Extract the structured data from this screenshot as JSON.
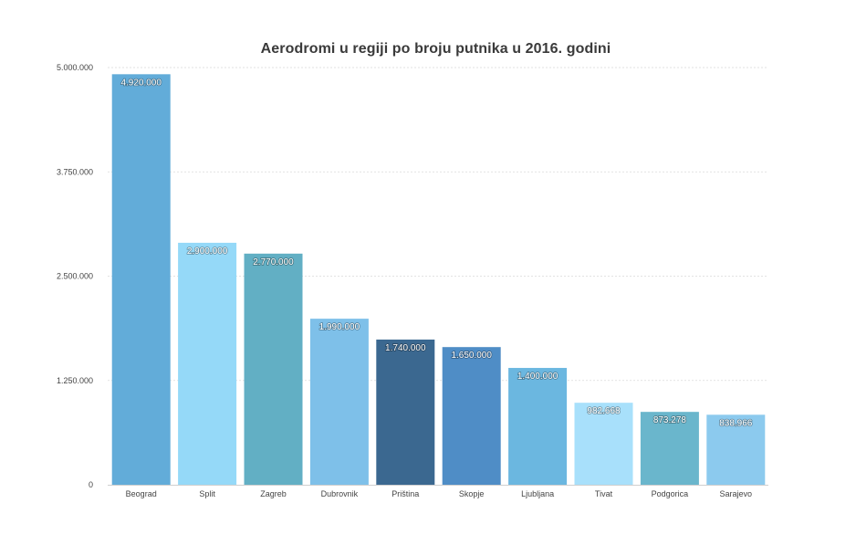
{
  "chart_data": {
    "type": "bar",
    "title": "Aerodromi u regiji po broju putnika u 2016. godini",
    "xlabel": "",
    "ylabel": "",
    "ylim": [
      0,
      5000000
    ],
    "y_ticks": [
      0,
      1250000,
      2500000,
      3750000,
      5000000
    ],
    "y_tick_labels": [
      "0",
      "1.250.000",
      "2.500.000",
      "3.750.000",
      "5.000.000"
    ],
    "grid": true,
    "legend": "none",
    "categories": [
      "Beograd",
      "Split",
      "Zagreb",
      "Dubrovnik",
      "Priština",
      "Skopje",
      "Ljubljana",
      "Tivat",
      "Podgorica",
      "Sarajevo"
    ],
    "values": [
      4920000,
      2900000,
      2770000,
      1990000,
      1740000,
      1650000,
      1400000,
      982668,
      873278,
      838966
    ],
    "value_labels": [
      "4.920.000",
      "2.900.000",
      "2.770.000",
      "1.990.000",
      "1.740.000",
      "1.650.000",
      "1.400.000",
      "982.668",
      "873.278",
      "838.966"
    ],
    "colors": [
      "#62acd9",
      "#95d9f8",
      "#62afc4",
      "#7ec0e9",
      "#3b6890",
      "#4f8dc6",
      "#6bb7e0",
      "#a8e0fb",
      "#6ab6cc",
      "#8ccaee"
    ]
  }
}
